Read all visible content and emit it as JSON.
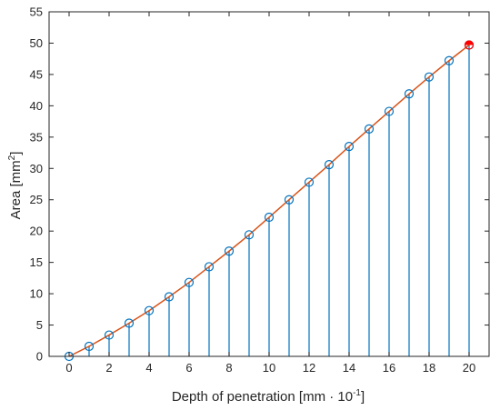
{
  "chart_data": {
    "type": "stem",
    "title": "",
    "xlabel": {
      "text": "Depth of penetration [mm · 10",
      "superscript": "-1",
      "suffix": "]"
    },
    "ylabel": {
      "text": "Area [mm",
      "superscript": "2",
      "suffix": "]"
    },
    "xlim": [
      -1,
      21
    ],
    "ylim": [
      0,
      55
    ],
    "xticks": [
      0,
      2,
      4,
      6,
      8,
      10,
      12,
      14,
      16,
      18,
      20
    ],
    "yticks": [
      0,
      5,
      10,
      15,
      20,
      25,
      30,
      35,
      40,
      45,
      50,
      55
    ],
    "grid": false,
    "x": [
      0,
      1,
      2,
      3,
      4,
      5,
      6,
      7,
      8,
      9,
      10,
      11,
      12,
      13,
      14,
      15,
      16,
      17,
      18,
      19,
      20
    ],
    "series": [
      {
        "kind": "stem",
        "values": [
          0,
          1.6,
          3.4,
          5.3,
          7.3,
          9.5,
          11.8,
          14.3,
          16.8,
          19.4,
          22.2,
          25.0,
          27.8,
          30.6,
          33.5,
          36.3,
          39.1,
          41.9,
          44.6,
          47.2,
          49.7
        ],
        "color": "#0072BD",
        "marker": "circle"
      },
      {
        "kind": "line",
        "values": [
          0,
          1.6,
          3.4,
          5.3,
          7.3,
          9.5,
          11.8,
          14.3,
          16.8,
          19.4,
          22.2,
          25.0,
          27.8,
          30.6,
          33.5,
          36.3,
          39.1,
          41.9,
          44.6,
          47.2,
          49.7
        ],
        "color": "#D95319"
      }
    ],
    "highlight": {
      "x": 20,
      "y": 49.7,
      "color": "#FF0000"
    }
  }
}
